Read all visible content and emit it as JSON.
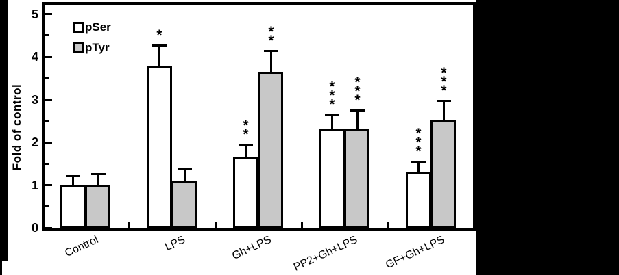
{
  "chart_data": {
    "type": "bar",
    "title": "",
    "xlabel": "",
    "ylabel": "Fold of control",
    "ylim": [
      0,
      5
    ],
    "yticks": [
      0,
      1,
      2,
      3,
      4,
      5
    ],
    "minor_tick_interval": 0.5,
    "grid": false,
    "legend_position": "top-left-inside",
    "categories": [
      "Control",
      "LPS",
      "Gh+LPS",
      "PP2+Gh+LPS",
      "GF+Gh+LPS"
    ],
    "series": [
      {
        "name": "pSer",
        "fill": "#ffffff",
        "values": [
          1.0,
          3.8,
          1.65,
          2.32,
          1.3
        ],
        "errors_plus": [
          0.22,
          0.48,
          0.3,
          0.33,
          0.26
        ],
        "significance": [
          "",
          "*",
          "**",
          "***",
          "***"
        ]
      },
      {
        "name": "pTyr",
        "fill": "#c8c8c8",
        "values": [
          1.0,
          1.1,
          3.65,
          2.32,
          2.52
        ],
        "errors_plus": [
          0.26,
          0.27,
          0.5,
          0.43,
          0.45
        ],
        "significance": [
          "",
          "",
          "**",
          "***",
          "***"
        ]
      }
    ]
  },
  "style": {
    "bar_border_color": "#000000",
    "axis_color": "#000000",
    "background": "#ffffff",
    "surround_color": "#000000"
  }
}
